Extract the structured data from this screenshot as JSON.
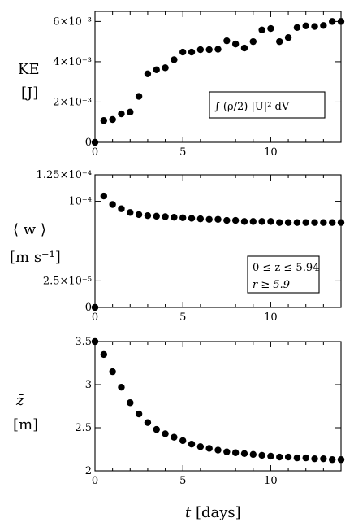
{
  "chart_data": [
    {
      "type": "scatter",
      "ylabel_line1": "KE",
      "ylabel_line2": "[J]",
      "ylim": [
        0,
        0.0065
      ],
      "xlim": [
        0,
        14
      ],
      "yticks": [
        {
          "value": 0,
          "label": "0"
        },
        {
          "value": 0.002,
          "label": "2×10⁻³"
        },
        {
          "value": 0.004,
          "label": "4×10⁻³"
        },
        {
          "value": 0.006,
          "label": "6×10⁻³"
        }
      ],
      "annotation": "∫  (ρ/2) |U|² dV",
      "x": [
        0,
        0.5,
        1,
        1.5,
        2,
        2.5,
        3,
        3.5,
        4,
        4.5,
        5,
        5.5,
        6,
        6.5,
        7,
        7.5,
        8,
        8.5,
        9,
        9.5,
        10,
        10.5,
        11,
        11.5,
        12,
        12.5,
        13,
        13.5,
        14
      ],
      "y": [
        0,
        0.00108,
        0.00113,
        0.00141,
        0.0015,
        0.00228,
        0.0034,
        0.0036,
        0.0037,
        0.0041,
        0.00448,
        0.00448,
        0.0046,
        0.0046,
        0.00462,
        0.00504,
        0.00488,
        0.00468,
        0.005,
        0.00558,
        0.00565,
        0.005,
        0.0052,
        0.0057,
        0.00578,
        0.00575,
        0.0058,
        0.006,
        0.006
      ]
    },
    {
      "type": "scatter",
      "ylabel_line1": "⟨ w ⟩",
      "ylabel_line2": "[m s⁻¹]",
      "ylim": [
        0,
        0.000125
      ],
      "xlim": [
        0,
        14
      ],
      "yticks": [
        {
          "value": 0,
          "label": "0"
        },
        {
          "value": 2.5e-05,
          "label": "2.5×10⁻⁵"
        },
        {
          "value": 0.0001,
          "label": "10⁻⁴"
        },
        {
          "value": 0.000125,
          "label": "1.25×10⁻⁴"
        }
      ],
      "annotation_line1": "0 ≤ z ≤ 5.94",
      "annotation_line2": "r ≥ 5.9",
      "x": [
        0,
        0.5,
        1,
        1.5,
        2,
        2.5,
        3,
        3.5,
        4,
        4.5,
        5,
        5.5,
        6,
        6.5,
        7,
        7.5,
        8,
        8.5,
        9,
        9.5,
        10,
        10.5,
        11,
        11.5,
        12,
        12.5,
        13,
        13.5,
        14
      ],
      "y": [
        0,
        0.000105,
        9.7e-05,
        9.3e-05,
        8.95e-05,
        8.75e-05,
        8.65e-05,
        8.6e-05,
        8.55e-05,
        8.5e-05,
        8.45e-05,
        8.4e-05,
        8.35e-05,
        8.3e-05,
        8.3e-05,
        8.2e-05,
        8.2e-05,
        8.1e-05,
        8.1e-05,
        8.1e-05,
        8.1e-05,
        8e-05,
        8e-05,
        8e-05,
        8e-05,
        8e-05,
        8e-05,
        8e-05,
        8e-05
      ]
    },
    {
      "type": "scatter",
      "ylabel_line1": "z̄",
      "ylabel_line2": "[m]",
      "ylim": [
        2,
        3.5
      ],
      "xlim": [
        0,
        14
      ],
      "yticks": [
        {
          "value": 2,
          "label": "2"
        },
        {
          "value": 2.5,
          "label": "2.5"
        },
        {
          "value": 3,
          "label": "3"
        },
        {
          "value": 3.5,
          "label": "3.5"
        }
      ],
      "x": [
        0,
        0.5,
        1,
        1.5,
        2,
        2.5,
        3,
        3.5,
        4,
        4.5,
        5,
        5.5,
        6,
        6.5,
        7,
        7.5,
        8,
        8.5,
        9,
        9.5,
        10,
        10.5,
        11,
        11.5,
        12,
        12.5,
        13,
        13.5,
        14
      ],
      "y": [
        3.5,
        3.35,
        3.15,
        2.97,
        2.79,
        2.66,
        2.56,
        2.48,
        2.43,
        2.39,
        2.35,
        2.31,
        2.28,
        2.26,
        2.24,
        2.22,
        2.21,
        2.2,
        2.19,
        2.18,
        2.17,
        2.16,
        2.16,
        2.15,
        2.15,
        2.14,
        2.14,
        2.13,
        2.13
      ]
    }
  ],
  "xticks": [
    {
      "value": 0,
      "label": "0"
    },
    {
      "value": 5,
      "label": "5"
    },
    {
      "value": 10,
      "label": "10"
    }
  ],
  "xlabel_var": "t",
  "xlabel_unit": " [days]"
}
